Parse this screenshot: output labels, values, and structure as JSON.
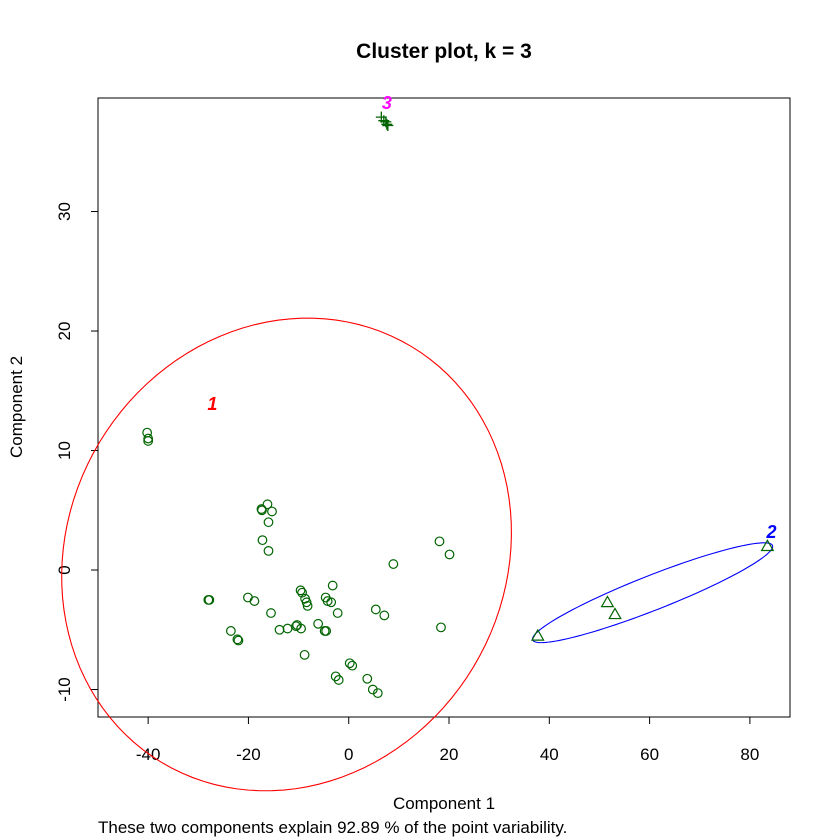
{
  "chart_data": {
    "type": "scatter",
    "title": "Cluster plot, k =  3",
    "xlabel": "Component 1",
    "ylabel": "Component 2",
    "subtitle": "These two components explain 92.89 % of the point variability.",
    "xlim": [
      -50,
      88
    ],
    "ylim": [
      -12.3,
      39.5
    ],
    "xticks": [
      -40,
      -20,
      0,
      20,
      40,
      60,
      80
    ],
    "yticks": [
      -10,
      0,
      10,
      20,
      30
    ],
    "grid": false,
    "point_color": "#006400",
    "clusters": [
      {
        "name": "1",
        "color": "#ff0000",
        "marker": "circle",
        "ellipse": {
          "center": [
            -12.4,
            1.3
          ],
          "semi_major": 43.5,
          "semi_minor": 20.3,
          "angle_deg": -31
        },
        "label_at": [
          -27.2,
          13.4
        ],
        "points": [
          [
            -40.2,
            11.5
          ],
          [
            -40.0,
            11.0
          ],
          [
            -40.0,
            10.8
          ],
          [
            -16.2,
            5.5
          ],
          [
            -17.4,
            5.1
          ],
          [
            -17.3,
            5.0
          ],
          [
            -15.3,
            4.9
          ],
          [
            -16.0,
            4.0
          ],
          [
            -17.2,
            2.5
          ],
          [
            -16.0,
            1.6
          ],
          [
            -28.0,
            -2.5
          ],
          [
            -27.8,
            -2.5
          ],
          [
            -20.1,
            -2.3
          ],
          [
            -18.8,
            -2.6
          ],
          [
            -15.5,
            -3.6
          ],
          [
            -23.5,
            -5.1
          ],
          [
            -22.2,
            -5.8
          ],
          [
            -22.0,
            -5.9
          ],
          [
            -13.8,
            -5.0
          ],
          [
            -12.2,
            -4.9
          ],
          [
            -10.5,
            -4.7
          ],
          [
            -10.3,
            -4.6
          ],
          [
            -9.5,
            -4.9
          ],
          [
            -9.6,
            -1.7
          ],
          [
            -9.3,
            -1.9
          ],
          [
            -8.7,
            -2.4
          ],
          [
            -8.2,
            -3.0
          ],
          [
            -8.4,
            -2.7
          ],
          [
            -8.8,
            -7.1
          ],
          [
            -6.1,
            -4.5
          ],
          [
            -4.6,
            -2.3
          ],
          [
            -4.2,
            -2.6
          ],
          [
            -3.5,
            -2.7
          ],
          [
            -3.2,
            -1.3
          ],
          [
            -2.2,
            -3.6
          ],
          [
            -4.8,
            -5.1
          ],
          [
            -4.5,
            -5.1
          ],
          [
            0.2,
            -7.8
          ],
          [
            0.7,
            -8.0
          ],
          [
            -2.6,
            -8.9
          ],
          [
            -2.0,
            -9.2
          ],
          [
            3.7,
            -9.1
          ],
          [
            4.8,
            -10.0
          ],
          [
            5.8,
            -10.3
          ],
          [
            5.4,
            -3.3
          ],
          [
            7.1,
            -3.8
          ],
          [
            8.9,
            0.5
          ],
          [
            18.1,
            2.4
          ],
          [
            20.1,
            1.3
          ],
          [
            18.4,
            -4.8
          ]
        ]
      },
      {
        "name": "2",
        "color": "#0000ff",
        "marker": "triangle",
        "ellipse": {
          "center": [
            60.6,
            -1.9
          ],
          "semi_major": 25.7,
          "semi_minor": 1.45,
          "angle_deg": 21.5
        },
        "label_at": [
          84.3,
          2.7
        ],
        "points": [
          [
            37.7,
            -5.5
          ],
          [
            51.6,
            -2.7
          ],
          [
            53.1,
            -3.7
          ],
          [
            83.5,
            2.0
          ]
        ]
      },
      {
        "name": "3",
        "color": "#ff00ff",
        "marker": "plus",
        "ellipse": null,
        "label_at": [
          7.6,
          38.6
        ],
        "points": [
          [
            6.5,
            37.9
          ],
          [
            7.0,
            37.6
          ],
          [
            7.4,
            37.5
          ],
          [
            7.6,
            37.3
          ],
          [
            7.8,
            37.2
          ]
        ]
      }
    ]
  }
}
